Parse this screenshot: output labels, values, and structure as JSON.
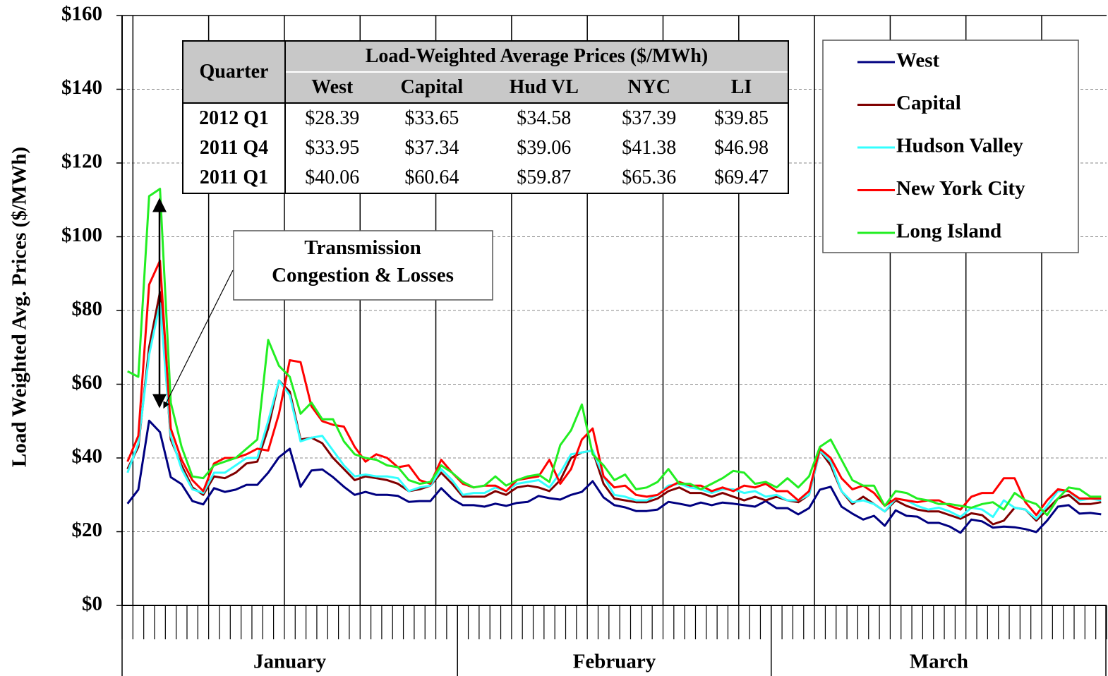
{
  "chart_data": {
    "type": "line",
    "y_label": "Load Weighted Avg. Prices  ($/MWh)",
    "annotation": "Transmission Congestion & Losses",
    "categories": [
      "January",
      null,
      null,
      null,
      null,
      null,
      null,
      null,
      null,
      null,
      null,
      null,
      null,
      null,
      null,
      null,
      null,
      null,
      null,
      null,
      null,
      null,
      null,
      null,
      null,
      null,
      null,
      null,
      null,
      null,
      null,
      "February",
      null,
      null,
      null,
      null,
      null,
      null,
      null,
      null,
      null,
      null,
      null,
      null,
      null,
      null,
      null,
      null,
      null,
      null,
      null,
      null,
      null,
      null,
      null,
      null,
      null,
      null,
      null,
      null,
      "March",
      null,
      null,
      null,
      null,
      null,
      null,
      null,
      null,
      null,
      null,
      null,
      null,
      null,
      null,
      null,
      null,
      null,
      null,
      null,
      null,
      null,
      null,
      null,
      null,
      null,
      null,
      null,
      null,
      null,
      null
    ],
    "ylim": [
      0,
      160
    ],
    "yticks": [
      {
        "value": 0,
        "label": "$0"
      },
      {
        "value": 20,
        "label": "$20"
      },
      {
        "value": 40,
        "label": "$40"
      },
      {
        "value": 60,
        "label": "$60"
      },
      {
        "value": 80,
        "label": "$80"
      },
      {
        "value": 100,
        "label": "$100"
      },
      {
        "value": 120,
        "label": "$120"
      },
      {
        "value": 140,
        "label": "$140"
      },
      {
        "value": 160,
        "label": "$160"
      }
    ],
    "grid": true,
    "legend": "top-right",
    "series": [
      {
        "name": "West",
        "color": "#000080",
        "values": [
          27.6,
          31.4,
          50.1,
          47,
          34.8,
          32.9,
          28.3,
          27.4,
          31.8,
          30.8,
          31.4,
          32.7,
          32.7,
          36,
          40.2,
          42.5,
          32.2,
          36.6,
          36.9,
          34.8,
          32.2,
          30,
          30.8,
          30,
          30,
          29.7,
          28.1,
          28.3,
          28.3,
          31.8,
          28.9,
          27.2,
          27.2,
          26.8,
          27.6,
          27,
          27.8,
          28.1,
          29.7,
          29.1,
          28.7,
          30,
          30.8,
          33.7,
          29.3,
          27.2,
          26.6,
          25.6,
          25.6,
          26,
          28.1,
          27.6,
          27,
          27.9,
          27.2,
          27.9,
          27.6,
          27.2,
          26.8,
          28.3,
          26.4,
          26.4,
          24.7,
          26.4,
          31.4,
          32.2,
          26.8,
          24.9,
          23.3,
          24.3,
          21.6,
          25.8,
          24.3,
          24.1,
          22.4,
          22.4,
          21.4,
          19.7,
          23.3,
          22.8,
          21.1,
          21.4,
          21.2,
          20.7,
          19.9,
          23,
          26.8,
          27.2,
          24.9,
          25.1,
          24.7
        ]
      },
      {
        "name": "Capital",
        "color": "#800000",
        "values": [
          37,
          43,
          70,
          85,
          45,
          38,
          32,
          30,
          35,
          34.5,
          36,
          38.5,
          39,
          48,
          61,
          58,
          45,
          45.5,
          44,
          40,
          37,
          34,
          35,
          34.5,
          34,
          33,
          31,
          31.5,
          32.5,
          36,
          33,
          29.5,
          29.5,
          29.5,
          31,
          30,
          32,
          32.5,
          32,
          31,
          34,
          40,
          41.5,
          42,
          33,
          29,
          28.5,
          28,
          28,
          29,
          31,
          32,
          30.5,
          30.5,
          29.5,
          30.5,
          29.5,
          28.5,
          29.5,
          28.5,
          29.5,
          28.5,
          28,
          30,
          42,
          38,
          31,
          27.5,
          29.5,
          27.5,
          25.5,
          28.5,
          27,
          26,
          25.5,
          25.5,
          24.5,
          23.5,
          25,
          24.5,
          22,
          23,
          26.5,
          26,
          23,
          26,
          29,
          30,
          27.5,
          27.5,
          28
        ]
      },
      {
        "name": "Hudson Valley",
        "color": "#33ffff",
        "values": [
          36,
          44,
          68,
          82,
          46,
          37,
          31.5,
          30.5,
          36,
          36,
          38,
          40,
          40,
          50,
          61,
          57,
          44.5,
          45.5,
          46,
          42,
          38,
          35,
          35.5,
          35,
          35,
          34.5,
          31,
          32,
          32.5,
          37,
          34,
          30,
          30.5,
          30.5,
          32,
          31,
          33,
          33.5,
          34,
          32,
          36,
          41,
          41.5,
          42,
          35,
          30,
          29.5,
          28.5,
          28.5,
          30,
          32.5,
          33,
          32,
          31.5,
          30.5,
          31.5,
          31.5,
          30.5,
          31,
          29.5,
          30,
          28.5,
          28.5,
          30,
          42,
          39,
          31,
          28,
          28.5,
          27.5,
          25.5,
          29,
          28.5,
          27,
          26,
          26.5,
          25.5,
          24,
          26.5,
          26,
          24,
          28.5,
          26.5,
          26,
          23.5,
          27,
          31,
          31,
          28.5,
          29,
          28.5
        ]
      },
      {
        "name": "New York City",
        "color": "#ff0000",
        "values": [
          39,
          46,
          87,
          93.5,
          48,
          39.5,
          34,
          31,
          38.5,
          40,
          40,
          41,
          42.5,
          42,
          52,
          66.5,
          66,
          54,
          50,
          49,
          48.5,
          43,
          39,
          41,
          40,
          37.5,
          38,
          34,
          33,
          39.5,
          36,
          33,
          32,
          32.5,
          32.5,
          31,
          34,
          34.5,
          35,
          39.5,
          33,
          37,
          45,
          48,
          35,
          32,
          32.5,
          30,
          29.5,
          30,
          32,
          33.5,
          32.5,
          32.5,
          31,
          32,
          31,
          32.5,
          32,
          33,
          31,
          31,
          28.5,
          31,
          42.5,
          40,
          34.5,
          31.5,
          32.5,
          30.5,
          27,
          29,
          28.5,
          28,
          28.5,
          28.5,
          27,
          26,
          29.5,
          30.5,
          30.5,
          34.5,
          34.5,
          28,
          24.5,
          28.5,
          31.5,
          31,
          29,
          29,
          29
        ]
      },
      {
        "name": "Long Island",
        "color": "#22ee22",
        "values": [
          63.5,
          62,
          111,
          113,
          55,
          43,
          35,
          34.5,
          38,
          39,
          40,
          42.5,
          45,
          72,
          65,
          62,
          52,
          55,
          50.5,
          50.5,
          44.5,
          41,
          40,
          39.5,
          38,
          37.5,
          34,
          33,
          33.5,
          38,
          36,
          33.5,
          32,
          32.5,
          35,
          32.5,
          34,
          35,
          35.5,
          33.5,
          43.5,
          47.5,
          54.5,
          41,
          38,
          34,
          35.5,
          31.5,
          32,
          33.5,
          37,
          33,
          33,
          31.5,
          33,
          34.5,
          36.5,
          36,
          33,
          33.5,
          32,
          34.5,
          32,
          35,
          43,
          45,
          39.5,
          34,
          32.5,
          32.5,
          27,
          31,
          30.5,
          29,
          28.5,
          27.5,
          27.5,
          27,
          26.5,
          27.5,
          28,
          26,
          30.5,
          28.5,
          27.5,
          24.5,
          29,
          32,
          31.5,
          29.5,
          29.5
        ]
      }
    ]
  },
  "table": {
    "title": "Load-Weighted Average Prices ($/MWh)",
    "header": [
      "Quarter",
      "West",
      "Capital",
      "Hud VL",
      "NYC",
      "LI"
    ],
    "rows": [
      [
        "2012 Q1",
        "$28.39",
        "$33.65",
        "$34.58",
        "$37.39",
        "$39.85"
      ],
      [
        "2011 Q4",
        "$33.95",
        "$37.34",
        "$39.06",
        "$41.38",
        "$46.98"
      ],
      [
        "2011 Q1",
        "$40.06",
        "$60.64",
        "$59.87",
        "$65.36",
        "$69.47"
      ]
    ]
  }
}
